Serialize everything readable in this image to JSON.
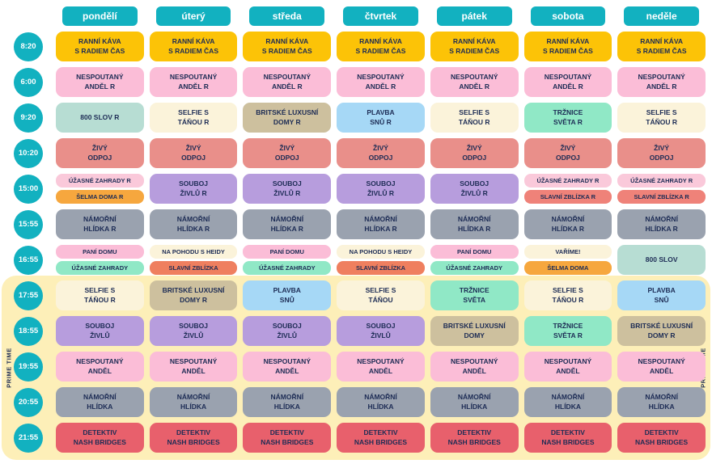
{
  "prime_time": {
    "label": "PRIME TIME"
  },
  "palette": {
    "teal": "#12b1c0",
    "gold": "#fcc307",
    "pink": "#fbbdd7",
    "paleteal": "#b7ddd3",
    "cream": "#fbf3da",
    "tan": "#cdc09e",
    "blue": "#a6d8f6",
    "mint": "#90e8c6",
    "salmon": "#e98f8a",
    "lightpink": "#fac9da",
    "orange": "#f6a73e",
    "purple": "#b79ddd",
    "salmonred": "#ef8279",
    "orangered": "#ef7f5f",
    "gray": "#9aa2af",
    "red": "#e8606c",
    "primebg": "#fdefb8",
    "text": "#1d2c55"
  },
  "chart_data": {
    "type": "table",
    "columns": [
      "pondělí",
      "úterý",
      "středa",
      "čtvrtek",
      "pátek",
      "sobota",
      "neděle"
    ],
    "rows": [
      {
        "time": "8:20",
        "cells": [
          [
            {
              "title": "RANNÍ KÁVA\nS RADIEM ČAS",
              "color": "gold"
            }
          ],
          [
            {
              "title": "RANNÍ KÁVA\nS RADIEM ČAS",
              "color": "gold"
            }
          ],
          [
            {
              "title": "RANNÍ KÁVA\nS RADIEM ČAS",
              "color": "gold"
            }
          ],
          [
            {
              "title": "RANNÍ KÁVA\nS RADIEM ČAS",
              "color": "gold"
            }
          ],
          [
            {
              "title": "RANNÍ KÁVA\nS RADIEM ČAS",
              "color": "gold"
            }
          ],
          [
            {
              "title": "RANNÍ KÁVA\nS RADIEM ČAS",
              "color": "gold"
            }
          ],
          [
            {
              "title": "RANNÍ KÁVA\nS RADIEM ČAS",
              "color": "gold"
            }
          ]
        ]
      },
      {
        "time": "6:00",
        "cells": [
          [
            {
              "title": "NESPOUTANÝ\nANDĚL R",
              "color": "pink"
            }
          ],
          [
            {
              "title": "NESPOUTANÝ\nANDĚL R",
              "color": "pink"
            }
          ],
          [
            {
              "title": "NESPOUTANÝ\nANDĚL R",
              "color": "pink"
            }
          ],
          [
            {
              "title": "NESPOUTANÝ\nANDĚL R",
              "color": "pink"
            }
          ],
          [
            {
              "title": "NESPOUTANÝ\nANDĚL R",
              "color": "pink"
            }
          ],
          [
            {
              "title": "NESPOUTANÝ\nANDĚL R",
              "color": "pink"
            }
          ],
          [
            {
              "title": "NESPOUTANÝ\nANDĚL R",
              "color": "pink"
            }
          ]
        ]
      },
      {
        "time": "9:20",
        "cells": [
          [
            {
              "title": "800 SLOV R",
              "color": "paleteal"
            }
          ],
          [
            {
              "title": "SELFIE S\nTÁŇOU R",
              "color": "cream"
            }
          ],
          [
            {
              "title": "BRITSKÉ LUXUSNÍ\nDOMY R",
              "color": "tan"
            }
          ],
          [
            {
              "title": "PLAVBA\nSNŮ R",
              "color": "blue"
            }
          ],
          [
            {
              "title": "SELFIE S\nTÁŇOU R",
              "color": "cream"
            }
          ],
          [
            {
              "title": "TRŽNICE\nSVĚTA R",
              "color": "mint"
            }
          ],
          [
            {
              "title": "SELFIE S\nTÁŇOU R",
              "color": "cream"
            }
          ]
        ]
      },
      {
        "time": "10:20",
        "cells": [
          [
            {
              "title": "ŽIVÝ\nODPOJ",
              "color": "salmon"
            }
          ],
          [
            {
              "title": "ŽIVÝ\nODPOJ",
              "color": "salmon"
            }
          ],
          [
            {
              "title": "ŽIVÝ\nODPOJ",
              "color": "salmon"
            }
          ],
          [
            {
              "title": "ŽIVÝ\nODPOJ",
              "color": "salmon"
            }
          ],
          [
            {
              "title": "ŽIVÝ\nODPOJ",
              "color": "salmon"
            }
          ],
          [
            {
              "title": "ŽIVÝ\nODPOJ",
              "color": "salmon"
            }
          ],
          [
            {
              "title": "ŽIVÝ\nODPOJ",
              "color": "salmon"
            }
          ]
        ]
      },
      {
        "time": "15:00",
        "cells": [
          [
            {
              "title": "ÚŽASNÉ ZAHRADY R",
              "color": "lightpink"
            },
            {
              "title": "ŠELMA DOMA R",
              "color": "orange"
            }
          ],
          [
            {
              "title": "SOUBOJ\nŽIVLŮ R",
              "color": "purple"
            }
          ],
          [
            {
              "title": "SOUBOJ\nŽIVLŮ R",
              "color": "purple"
            }
          ],
          [
            {
              "title": "SOUBOJ\nŽIVLŮ R",
              "color": "purple"
            }
          ],
          [
            {
              "title": "SOUBOJ\nŽIVLŮ R",
              "color": "purple"
            }
          ],
          [
            {
              "title": "ÚŽASNÉ ZAHRADY R",
              "color": "lightpink"
            },
            {
              "title": "SLAVNÍ ZBLÍZKA R",
              "color": "salmonred"
            }
          ],
          [
            {
              "title": "ÚŽASNÉ ZAHRADY R",
              "color": "lightpink"
            },
            {
              "title": "SLAVNÍ ZBLÍZKA R",
              "color": "salmonred"
            }
          ]
        ]
      },
      {
        "time": "15:55",
        "cells": [
          [
            {
              "title": "NÁMOŘNÍ\nHLÍDKA R",
              "color": "gray"
            }
          ],
          [
            {
              "title": "NÁMOŘNÍ\nHLÍDKA R",
              "color": "gray"
            }
          ],
          [
            {
              "title": "NÁMOŘNÍ\nHLÍDKA R",
              "color": "gray"
            }
          ],
          [
            {
              "title": "NÁMOŘNÍ\nHLÍDKA R",
              "color": "gray"
            }
          ],
          [
            {
              "title": "NÁMOŘNÍ\nHLÍDKA R",
              "color": "gray"
            }
          ],
          [
            {
              "title": "NÁMOŘNÍ\nHLÍDKA R",
              "color": "gray"
            }
          ],
          [
            {
              "title": "NÁMOŘNÍ\nHLÍDKA R",
              "color": "gray"
            }
          ]
        ]
      },
      {
        "time": "16:55",
        "cells": [
          [
            {
              "title": "PANÍ DOMU",
              "color": "pink"
            },
            {
              "title": "ÚŽASNÉ ZAHRADY",
              "color": "mint"
            }
          ],
          [
            {
              "title": "NA POHODU S HEIDY",
              "color": "cream"
            },
            {
              "title": "SLAVNÍ ZBLÍZKA",
              "color": "orangered"
            }
          ],
          [
            {
              "title": "PANÍ DOMU",
              "color": "pink"
            },
            {
              "title": "ÚŽASNÉ ZAHRADY",
              "color": "mint"
            }
          ],
          [
            {
              "title": "NA POHODU S HEIDY",
              "color": "cream"
            },
            {
              "title": "SLAVNÍ ZBLÍZKA",
              "color": "orangered"
            }
          ],
          [
            {
              "title": "PANÍ DOMU",
              "color": "pink"
            },
            {
              "title": "ÚŽASNÉ ZAHRADY",
              "color": "mint"
            }
          ],
          [
            {
              "title": "VAŘÍME!",
              "color": "cream"
            },
            {
              "title": "ŠELMA DOMA",
              "color": "orange"
            }
          ],
          [
            {
              "title": "800 SLOV",
              "color": "paleteal"
            }
          ]
        ]
      },
      {
        "time": "17:55",
        "cells": [
          [
            {
              "title": "SELFIE S\nTÁŇOU R",
              "color": "cream"
            }
          ],
          [
            {
              "title": "BRITSKÉ LUXUSNÍ\nDOMY R",
              "color": "tan"
            }
          ],
          [
            {
              "title": "PLAVBA\nSNŮ",
              "color": "blue"
            }
          ],
          [
            {
              "title": "SELFIE S\nTÁŇOU",
              "color": "cream"
            }
          ],
          [
            {
              "title": "TRŽNICE\nSVĚTA",
              "color": "mint"
            }
          ],
          [
            {
              "title": "SELFIE S\nTÁŇOU R",
              "color": "cream"
            }
          ],
          [
            {
              "title": "PLAVBA\nSNŮ",
              "color": "blue"
            }
          ]
        ]
      },
      {
        "time": "18:55",
        "cells": [
          [
            {
              "title": "SOUBOJ\nŽIVLŮ",
              "color": "purple"
            }
          ],
          [
            {
              "title": "SOUBOJ\nŽIVLŮ",
              "color": "purple"
            }
          ],
          [
            {
              "title": "SOUBOJ\nŽIVLŮ",
              "color": "purple"
            }
          ],
          [
            {
              "title": "SOUBOJ\nŽIVLŮ",
              "color": "purple"
            }
          ],
          [
            {
              "title": "BRITSKÉ LUXUSNÍ\nDOMY",
              "color": "tan"
            }
          ],
          [
            {
              "title": "TRŽNICE\nSVĚTA R",
              "color": "mint"
            }
          ],
          [
            {
              "title": "BRITSKÉ LUXUSNÍ\nDOMY R",
              "color": "tan"
            }
          ]
        ]
      },
      {
        "time": "19:55",
        "cells": [
          [
            {
              "title": "NESPOUTANÝ\nANDĚL",
              "color": "pink"
            }
          ],
          [
            {
              "title": "NESPOUTANÝ\nANDĚL",
              "color": "pink"
            }
          ],
          [
            {
              "title": "NESPOUTANÝ\nANDĚL",
              "color": "pink"
            }
          ],
          [
            {
              "title": "NESPOUTANÝ\nANDĚL",
              "color": "pink"
            }
          ],
          [
            {
              "title": "NESPOUTANÝ\nANDĚL",
              "color": "pink"
            }
          ],
          [
            {
              "title": "NESPOUTANÝ\nANDĚL",
              "color": "pink"
            }
          ],
          [
            {
              "title": "NESPOUTANÝ\nANDĚL",
              "color": "pink"
            }
          ]
        ]
      },
      {
        "time": "20:55",
        "cells": [
          [
            {
              "title": "NÁMOŘNÍ\nHLÍDKA",
              "color": "gray"
            }
          ],
          [
            {
              "title": "NÁMOŘNÍ\nHLÍDKA",
              "color": "gray"
            }
          ],
          [
            {
              "title": "NÁMOŘNÍ\nHLÍDKA",
              "color": "gray"
            }
          ],
          [
            {
              "title": "NÁMOŘNÍ\nHLÍDKA",
              "color": "gray"
            }
          ],
          [
            {
              "title": "NÁMOŘNÍ\nHLÍDKA",
              "color": "gray"
            }
          ],
          [
            {
              "title": "NÁMOŘNÍ\nHLÍDKA",
              "color": "gray"
            }
          ],
          [
            {
              "title": "NÁMOŘNÍ\nHLÍDKA",
              "color": "gray"
            }
          ]
        ]
      },
      {
        "time": "21:55",
        "cells": [
          [
            {
              "title": "DETEKTIV\nNASH BRIDGES",
              "color": "red"
            }
          ],
          [
            {
              "title": "DETEKTIV\nNASH BRIDGES",
              "color": "red"
            }
          ],
          [
            {
              "title": "DETEKTIV\nNASH BRIDGES",
              "color": "red"
            }
          ],
          [
            {
              "title": "DETEKTIV\nNASH BRIDGES",
              "color": "red"
            }
          ],
          [
            {
              "title": "DETEKTIV\nNASH BRIDGES",
              "color": "red"
            }
          ],
          [
            {
              "title": "DETEKTIV\nNASH BRIDGES",
              "color": "red"
            }
          ],
          [
            {
              "title": "DETEKTIV\nNASH BRIDGES",
              "color": "red"
            }
          ]
        ]
      }
    ]
  }
}
